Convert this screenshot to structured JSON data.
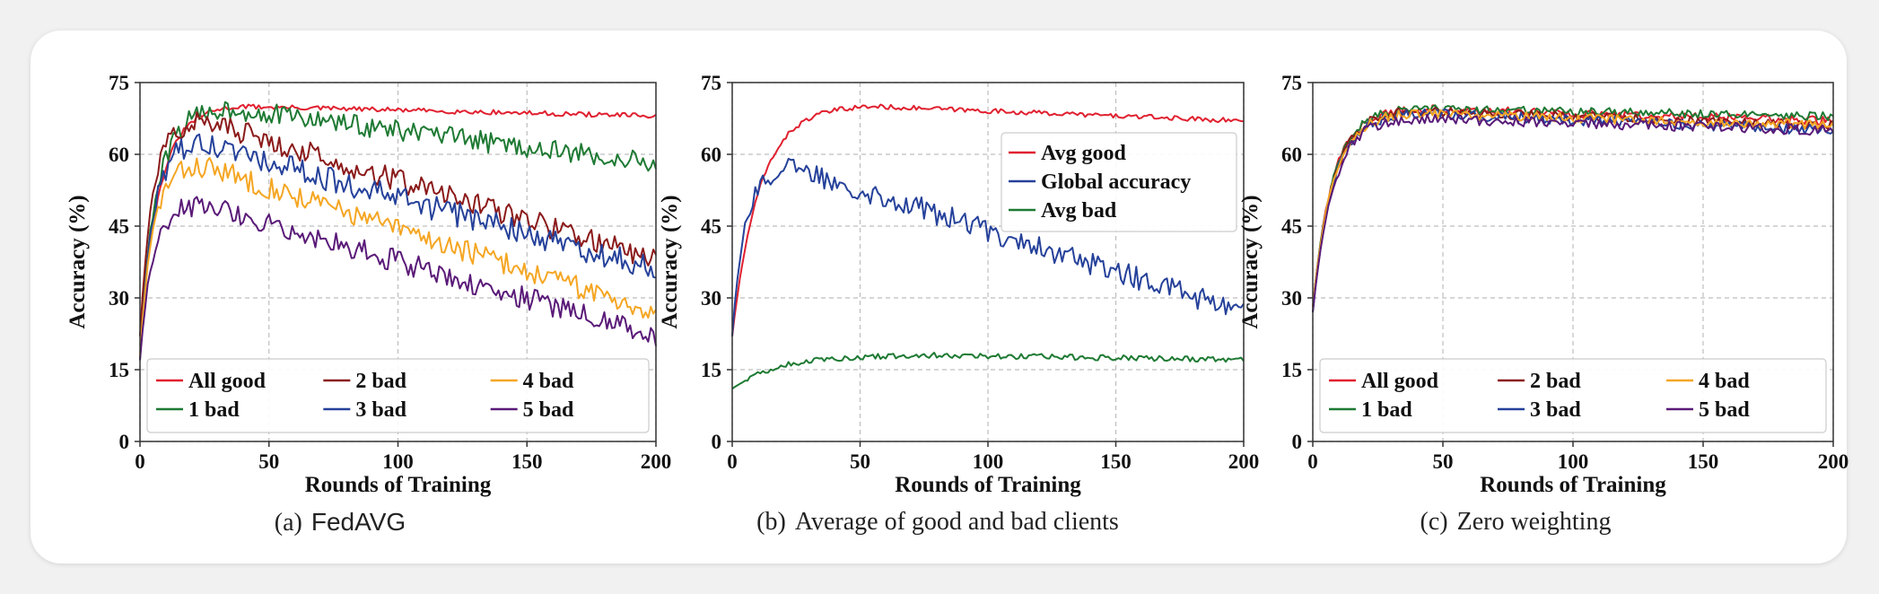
{
  "colors": {
    "red": "#e0202f",
    "darkred": "#8b1a1a",
    "orange": "#f5a623",
    "green": "#1e7a33",
    "blue": "#25419a",
    "purple": "#5a1a78",
    "grid": "#bdbdbd"
  },
  "chart_data": [
    {
      "type": "line",
      "caption_num": "(a)",
      "caption_text": "FedAVG",
      "xlabel": "Rounds of Training",
      "ylabel": "Accuracy (%)",
      "xlim": [
        0,
        200
      ],
      "ylim": [
        0,
        75
      ],
      "xticks": [
        "0",
        "50",
        "100",
        "150",
        "200"
      ],
      "yticks": [
        "0",
        "15",
        "30",
        "45",
        "60",
        "75"
      ],
      "grid": true,
      "legend_position": "lower-center",
      "legend_columns": 3,
      "series": [
        {
          "name": "All good",
          "color": "red",
          "start": 22,
          "peak": 70,
          "peak_at": 40,
          "end": 68,
          "noise": 0.5
        },
        {
          "name": "1 bad",
          "color": "green",
          "start": 22,
          "peak": 69.5,
          "peak_at": 35,
          "end": 58,
          "noise": 2.2
        },
        {
          "name": "2 bad",
          "color": "darkred",
          "start": 22,
          "peak": 67,
          "peak_at": 25,
          "end": 38,
          "noise": 2.4
        },
        {
          "name": "3 bad",
          "color": "blue",
          "start": 17,
          "peak": 62,
          "peak_at": 25,
          "end": 36,
          "noise": 2.6
        },
        {
          "name": "4 bad",
          "color": "orange",
          "start": 18,
          "peak": 57.5,
          "peak_at": 25,
          "end": 27,
          "noise": 2.4
        },
        {
          "name": "5 bad",
          "color": "purple",
          "start": 17,
          "peak": 49.5,
          "peak_at": 25,
          "end": 22,
          "noise": 2.4
        }
      ]
    },
    {
      "type": "line",
      "caption_num": "(b)",
      "caption_text": "Average of good and bad clients",
      "xlabel": "Rounds of Training",
      "ylabel": "Accuracy (%)",
      "xlim": [
        0,
        200
      ],
      "ylim": [
        0,
        75
      ],
      "xticks": [
        "0",
        "50",
        "100",
        "150",
        "200"
      ],
      "yticks": [
        "0",
        "15",
        "30",
        "45",
        "60",
        "75"
      ],
      "grid": true,
      "legend_position": "upper-right",
      "legend_columns": 1,
      "series": [
        {
          "name": "Avg good",
          "color": "red",
          "start": 22,
          "peak": 70,
          "peak_at": 55,
          "end": 67,
          "noise": 0.5
        },
        {
          "name": "Global accuracy",
          "color": "blue",
          "start": 22,
          "peak": 57,
          "peak_at": 25,
          "end": 27,
          "noise": 2.4
        },
        {
          "name": "Avg bad",
          "color": "green",
          "start": 11,
          "peak": 18,
          "peak_at": 90,
          "end": 17,
          "noise": 0.6
        }
      ]
    },
    {
      "type": "line",
      "caption_num": "(c)",
      "caption_text": "Zero weighting",
      "xlabel": "Rounds of Training",
      "ylabel": "Accuracy (%)",
      "xlim": [
        0,
        200
      ],
      "ylim": [
        0,
        75
      ],
      "xticks": [
        "0",
        "50",
        "100",
        "150",
        "200"
      ],
      "yticks": [
        "0",
        "15",
        "30",
        "45",
        "60",
        "75"
      ],
      "grid": true,
      "legend_position": "lower-center",
      "legend_columns": 3,
      "series": [
        {
          "name": "All good",
          "color": "red",
          "start": 28,
          "peak": 69.5,
          "peak_at": 40,
          "end": 67,
          "noise": 0.9
        },
        {
          "name": "1 bad",
          "color": "green",
          "start": 28,
          "peak": 69.5,
          "peak_at": 40,
          "end": 68,
          "noise": 0.9
        },
        {
          "name": "2 bad",
          "color": "darkred",
          "start": 28,
          "peak": 69,
          "peak_at": 40,
          "end": 66,
          "noise": 1.0
        },
        {
          "name": "3 bad",
          "color": "blue",
          "start": 27,
          "peak": 68.5,
          "peak_at": 40,
          "end": 65,
          "noise": 1.1
        },
        {
          "name": "4 bad",
          "color": "orange",
          "start": 28,
          "peak": 68.5,
          "peak_at": 40,
          "end": 66,
          "noise": 1.0
        },
        {
          "name": "5 bad",
          "color": "purple",
          "start": 27,
          "peak": 67.5,
          "peak_at": 40,
          "end": 65,
          "noise": 1.1
        }
      ]
    }
  ]
}
